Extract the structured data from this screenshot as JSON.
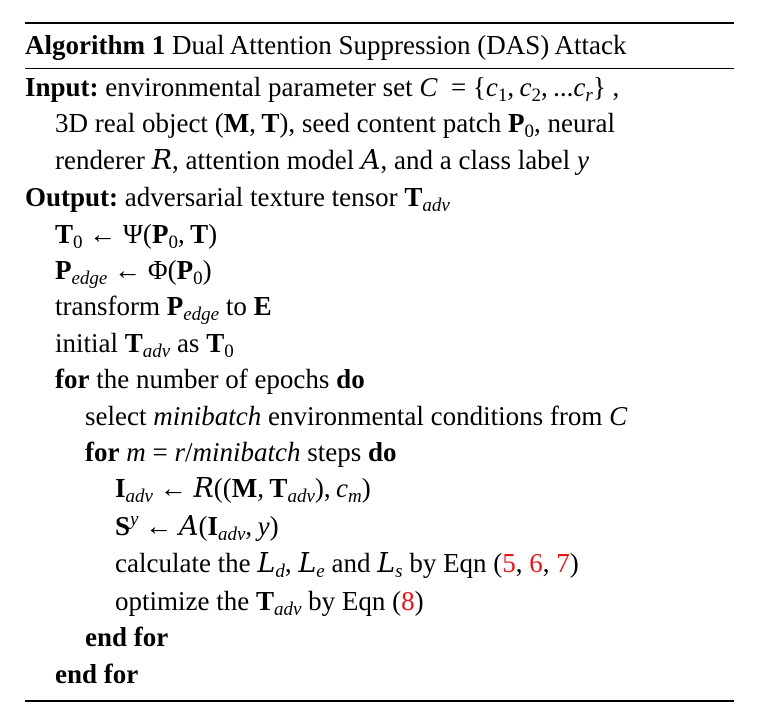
{
  "algorithm": {
    "label": "Algorithm 1",
    "title": "Dual Attention Suppression (DAS) Attack"
  },
  "input": {
    "keyword": "Input:",
    "line1_text": "environmental parameter set",
    "line2_text_a": "3D real object",
    "line2_text_b": ", seed content patch",
    "line2_text_c": ", neural",
    "line3_text_a": "renderer",
    "line3_text_b": ", attention model",
    "line3_text_c": ", and a class label"
  },
  "output": {
    "keyword": "Output:",
    "text": "adversarial texture tensor"
  },
  "steps": {
    "transform_text": "transform",
    "transform_to": "to",
    "initial_text": "initial",
    "initial_as": "as",
    "for_kw": "for",
    "epochs_text": "the number of epochs",
    "do_kw": "do",
    "select_text": "select",
    "minibatch_word": "minibatch",
    "select_rest": "environmental conditions from",
    "steps_word": "steps",
    "calculate_text": "calculate the",
    "and_word": "and",
    "by_eqn": "by Eqn (",
    "optimize_text": "optimize the",
    "end_for": "end for"
  },
  "refs": {
    "eq_a": "5",
    "eq_b": "6",
    "eq_c": "7",
    "eq_d": "8"
  },
  "colors": {
    "text": "#000000",
    "reference_link": "#e8141a"
  }
}
